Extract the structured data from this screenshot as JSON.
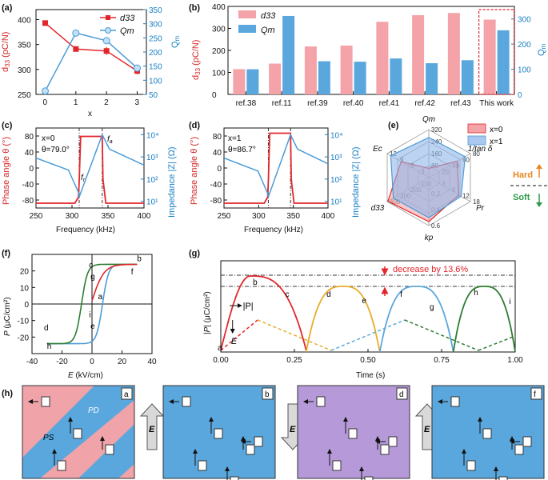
{
  "panel_labels": {
    "a": "(a)",
    "b": "(b)",
    "c": "(c)",
    "d": "(d)",
    "e": "(e)",
    "f": "(f)",
    "g": "(g)",
    "h": "(h)"
  },
  "colors": {
    "red": "#e3262b",
    "blue": "#4d9bd6",
    "pink": "#f4a3a8",
    "lightblue": "#5aa7dd",
    "orange": "#e8ac2b",
    "green": "#2e7d32",
    "purple": "#b699d8"
  },
  "chart_data": [
    {
      "id": "a",
      "type": "line",
      "xlabel": "x",
      "ylabel_left": "d33 (pC/N)",
      "ylabel_right": "Qm",
      "x": [
        0,
        1,
        2,
        3
      ],
      "series": [
        {
          "name": "d33",
          "axis": "left",
          "values": [
            393,
            341,
            337,
            297
          ],
          "errors": [
            0,
            0,
            8,
            7
          ]
        },
        {
          "name": "Qm",
          "axis": "right",
          "values": [
            62,
            267,
            240,
            143
          ],
          "errors": [
            0,
            12,
            10,
            8
          ]
        }
      ],
      "xticks": [
        "0",
        "1",
        "2",
        "3"
      ],
      "yticks_left": [
        "250",
        "300",
        "350",
        "400"
      ],
      "yticks_right": [
        "50",
        "100",
        "150",
        "200",
        "250",
        "300",
        "350"
      ],
      "ylim_left": [
        250,
        420
      ],
      "ylim_right": [
        50,
        350
      ],
      "legend": [
        "d33",
        "Qm"
      ]
    },
    {
      "id": "b",
      "type": "bar",
      "ylabel_left": "d33 (pC/N)",
      "ylabel_right": "Qm",
      "categories": [
        "ref.38",
        "ref.11",
        "ref.39",
        "ref.40",
        "ref.41",
        "ref.42",
        "ref.43",
        "This work"
      ],
      "series": [
        {
          "name": "d33",
          "axis": "left",
          "values": [
            115,
            140,
            218,
            222,
            330,
            360,
            370,
            340
          ]
        },
        {
          "name": "Qm",
          "axis": "right",
          "values": [
            100,
            312,
            132,
            130,
            143,
            124,
            136,
            255
          ]
        }
      ],
      "yticks_left": [
        "0",
        "100",
        "200",
        "300",
        "400"
      ],
      "yticks_right": [
        "0",
        "100",
        "200",
        "300"
      ],
      "ylim_left": [
        0,
        400
      ],
      "ylim_right": [
        0,
        350
      ],
      "highlight": "This work",
      "legend": [
        "d33",
        "Qm"
      ]
    },
    {
      "id": "c",
      "type": "line",
      "xlabel": "Frequency (kHz)",
      "ylabel_left": "Phase angle θ (°)",
      "ylabel_right": "Impedance |Z| (Ω)",
      "xlim": [
        250,
        400
      ],
      "ylim_left": [
        -100,
        100
      ],
      "xticks": [
        "250",
        "300",
        "350",
        "400"
      ],
      "yticks_left": [
        "-80",
        "-40",
        "0",
        "40",
        "80"
      ],
      "yticks_right": [
        "10¹",
        "10²",
        "10³",
        "10⁴"
      ],
      "annotations": [
        "x=0",
        "θ=79.0°",
        "fr",
        "fa"
      ],
      "fr": 310,
      "fa": 342
    },
    {
      "id": "d",
      "type": "line",
      "xlabel": "Frequency (kHz)",
      "ylabel_left": "Phase angle θ (°)",
      "ylabel_right": "Impedance |Z| (Ω)",
      "xlim": [
        250,
        400
      ],
      "ylim_left": [
        -100,
        100
      ],
      "xticks": [
        "250",
        "300",
        "350",
        "400"
      ],
      "yticks_left": [
        "-80",
        "-40",
        "0",
        "40",
        "80"
      ],
      "yticks_right": [
        "10¹",
        "10²",
        "10³",
        "10⁴"
      ],
      "annotations": [
        "x=1",
        "θ=86.7°"
      ],
      "fr": 314,
      "fa": 346
    },
    {
      "id": "e",
      "type": "radar",
      "axes": [
        "Qm",
        "1/tan δ",
        "Pr",
        "kp",
        "d33",
        "Ec"
      ],
      "axis_ticks": {
        "Qm": [
          "80",
          "160",
          "240",
          "320"
        ],
        "1/tan δ": [
          "20",
          "40",
          "60",
          "80"
        ],
        "Pr": [
          "3",
          "6",
          "12",
          "18"
        ],
        "kp": [
          "0.2",
          "0.4",
          "0.6"
        ],
        "d33": [
          "100",
          "200",
          "300",
          "400"
        ],
        "Ec": [
          "3",
          "6",
          "9",
          "12"
        ]
      },
      "series": [
        {
          "name": "x=0",
          "values": [
            62,
            55,
            13,
            0.55,
            393,
            8
          ]
        },
        {
          "name": "x=1",
          "values": [
            267,
            70,
            14,
            0.5,
            341,
            11
          ]
        }
      ],
      "legend": [
        "x=0",
        "x=1"
      ],
      "side_labels": [
        "Hard",
        "Soft"
      ]
    },
    {
      "id": "f",
      "type": "line",
      "xlabel": "E (kV/cm)",
      "ylabel": "P (μC/cm²)",
      "xlim": [
        -40,
        40
      ],
      "ylim": [
        -30,
        30
      ],
      "xticks": [
        "-40",
        "-20",
        "0",
        "20",
        "40"
      ],
      "yticks": [
        "-20",
        "-10",
        "0",
        "10",
        "20"
      ],
      "point_labels": [
        "a",
        "b",
        "c",
        "d",
        "e",
        "f",
        "g",
        "h",
        "i"
      ]
    },
    {
      "id": "g",
      "type": "line",
      "xlabel": "Time (s)",
      "ylabel": "|P| (μC/cm²)",
      "xlim": [
        0,
        1
      ],
      "xticks": [
        "0.00",
        "0.25",
        "0.50",
        "0.75",
        "1.00"
      ],
      "point_labels": [
        "a",
        "b",
        "c",
        "d",
        "e",
        "f",
        "g",
        "h",
        "i"
      ],
      "annotation": "decrease by 13.6%",
      "curve_labels": [
        "|P|",
        "E"
      ]
    }
  ],
  "panel_a": {
    "legend_d33": "d33",
    "legend_qm": "Qm"
  },
  "panel_e": {
    "legend_x0": "x=0",
    "legend_x1": "x=1",
    "hard": "Hard",
    "soft": "Soft"
  },
  "panel_h": {
    "arrow_label": "E",
    "sub_labels": [
      "a",
      "b",
      "d",
      "f"
    ],
    "pd": "PD",
    "ps": "PS"
  }
}
